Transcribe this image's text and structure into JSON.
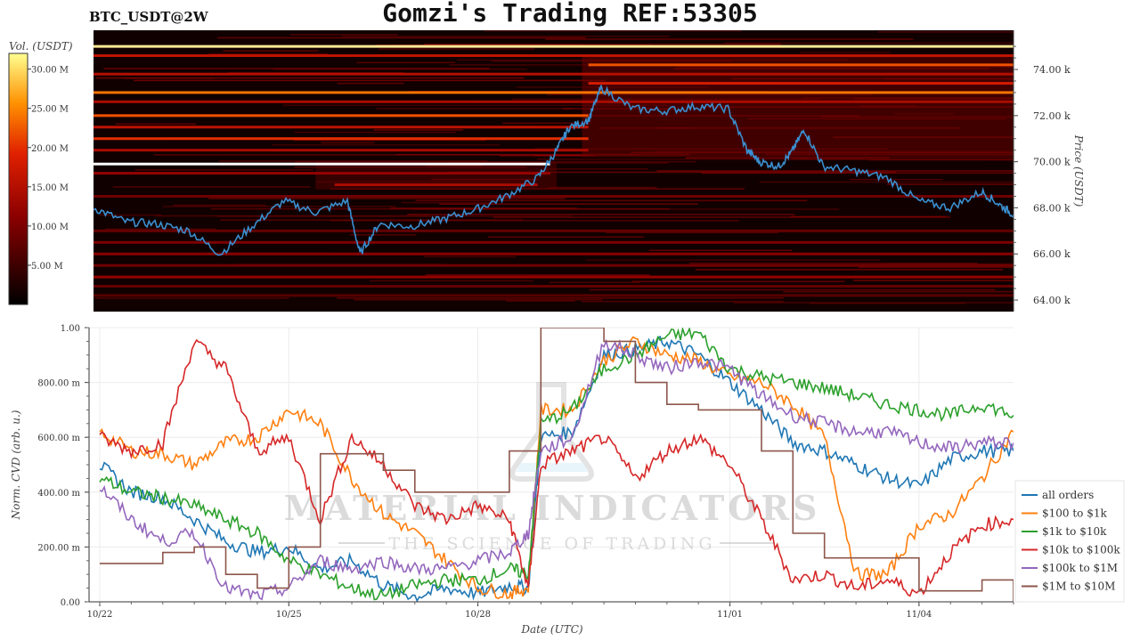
{
  "header": {
    "symbol": "BTC_USDT@2W",
    "title": "Gomzi's Trading REF:53305"
  },
  "watermark": {
    "brand": "MATERIAL INDICATORS",
    "tagline": "THE SCIENCE OF TRADING"
  },
  "colors": {
    "price_line": "#3a8fd0",
    "heatmap_bg": "#110000",
    "all_orders": "#1f77b4",
    "usd_100_1k": "#ff7f0e",
    "usd_1k_10k": "#2ca02c",
    "usd_10k_100k": "#d62728",
    "usd_100k_1m": "#9467bd",
    "usd_1m_10m": "#8c564b"
  },
  "chart_data": [
    {
      "type": "heatmap",
      "title": "BTC_USDT@2W",
      "colorbar": {
        "label": "Vol. (USDT)",
        "ticks": [
          "5.00 M",
          "10.00 M",
          "15.00 M",
          "20.00 M",
          "25.00 M",
          "30.00 M"
        ],
        "tick_values": [
          5,
          10,
          15,
          20,
          25,
          30
        ],
        "range": [
          0,
          32
        ]
      },
      "ylabel": "Price (USDT)",
      "ylim": [
        63500,
        75700
      ],
      "yticks": [
        "64.00 k",
        "66.00 k",
        "68.00 k",
        "70.00 k",
        "72.00 k",
        "74.00 k"
      ],
      "ytick_values": [
        64000,
        66000,
        68000,
        70000,
        72000,
        74000
      ],
      "xlim_days": [
        0,
        14.5
      ],
      "liquidity_bands": [
        {
          "price": 75000,
          "start": 0,
          "end": 14.5,
          "volume": 30
        },
        {
          "price": 74600,
          "start": 0,
          "end": 14.5,
          "volume": 16
        },
        {
          "price": 74200,
          "start": 7.8,
          "end": 14.5,
          "volume": 22
        },
        {
          "price": 73800,
          "start": 0,
          "end": 14.5,
          "volume": 15
        },
        {
          "price": 73400,
          "start": 7.8,
          "end": 14.5,
          "volume": 18
        },
        {
          "price": 73000,
          "start": 0,
          "end": 14.5,
          "volume": 24
        },
        {
          "price": 72600,
          "start": 0,
          "end": 14.5,
          "volume": 14
        },
        {
          "price": 72000,
          "start": 0,
          "end": 7.8,
          "volume": 22
        },
        {
          "price": 71500,
          "start": 0,
          "end": 7.8,
          "volume": 16
        },
        {
          "price": 71000,
          "start": 0,
          "end": 7.8,
          "volume": 20
        },
        {
          "price": 70500,
          "start": 0,
          "end": 7.8,
          "volume": 14
        },
        {
          "price": 69900,
          "start": 0,
          "end": 7.2,
          "volume": 32
        },
        {
          "price": 69500,
          "start": 0,
          "end": 7.2,
          "volume": 12
        },
        {
          "price": 69000,
          "start": 3.8,
          "end": 7.0,
          "volume": 14
        },
        {
          "price": 68500,
          "start": 0,
          "end": 14.5,
          "volume": 9
        },
        {
          "price": 67000,
          "start": 0,
          "end": 14.5,
          "volume": 8
        },
        {
          "price": 66500,
          "start": 0,
          "end": 14.5,
          "volume": 10
        },
        {
          "price": 66000,
          "start": 0,
          "end": 14.5,
          "volume": 11
        },
        {
          "price": 65500,
          "start": 0,
          "end": 14.5,
          "volume": 9
        },
        {
          "price": 65000,
          "start": 0,
          "end": 14.5,
          "volume": 12
        },
        {
          "price": 64600,
          "start": 0,
          "end": 14.5,
          "volume": 8
        },
        {
          "price": 64200,
          "start": 0,
          "end": 14.5,
          "volume": 7
        }
      ],
      "price_series": {
        "days": [
          0,
          0.5,
          1.0,
          1.5,
          2.0,
          2.5,
          3.0,
          3.5,
          4.0,
          4.2,
          4.5,
          5.0,
          5.5,
          6.0,
          6.5,
          7.0,
          7.3,
          7.5,
          7.8,
          8.0,
          8.5,
          9.0,
          9.5,
          10.0,
          10.3,
          10.5,
          10.8,
          11.0,
          11.2,
          11.5,
          12.0,
          12.5,
          13.0,
          13.5,
          14.0,
          14.3,
          14.5
        ],
        "price": [
          68000,
          67400,
          67300,
          67000,
          66000,
          67200,
          68300,
          67800,
          68300,
          66000,
          67300,
          67200,
          67500,
          67900,
          68500,
          69300,
          70500,
          71500,
          71800,
          73200,
          72300,
          72200,
          72400,
          72300,
          70500,
          70000,
          69800,
          70400,
          71400,
          69800,
          69600,
          69300,
          68300,
          68000,
          68700,
          68100,
          67700
        ]
      }
    },
    {
      "type": "line",
      "xlabel": "Date (UTC)",
      "ylabel": "Norm. CVD (arb. u.)",
      "ylim": [
        0,
        1
      ],
      "yticks": [
        "0.00",
        "200.00 m",
        "400.00 m",
        "600.00 m",
        "800.00 m",
        "1.00"
      ],
      "ytick_values": [
        0,
        0.2,
        0.4,
        0.6,
        0.8,
        1.0
      ],
      "xticks": [
        "10/22",
        "10/25",
        "10/28",
        "11/01",
        "11/04"
      ],
      "xtick_days": [
        0,
        3,
        6,
        10,
        13
      ],
      "xlim_days": [
        0,
        14.5
      ],
      "legend_position": "bottom-right",
      "x_days": [
        0,
        0.5,
        1.0,
        1.5,
        2.0,
        2.5,
        3.0,
        3.5,
        4.0,
        4.5,
        5.0,
        5.5,
        6.0,
        6.5,
        6.8,
        7.0,
        7.5,
        8.0,
        8.5,
        9.0,
        9.5,
        10.0,
        10.5,
        11.0,
        11.5,
        12.0,
        12.5,
        13.0,
        13.5,
        14.0,
        14.5
      ],
      "series": [
        {
          "name": "all orders",
          "color": "#1f77b4",
          "values": [
            0.5,
            0.4,
            0.38,
            0.3,
            0.22,
            0.18,
            0.2,
            0.12,
            0.15,
            0.06,
            0.02,
            0.05,
            0.03,
            0.06,
            0.05,
            0.6,
            0.62,
            0.9,
            0.92,
            0.95,
            0.9,
            0.8,
            0.7,
            0.58,
            0.55,
            0.5,
            0.45,
            0.42,
            0.52,
            0.55,
            0.55
          ]
        },
        {
          "name": "$100 to $1k",
          "color": "#ff7f0e",
          "values": [
            0.62,
            0.55,
            0.54,
            0.5,
            0.58,
            0.6,
            0.7,
            0.65,
            0.45,
            0.32,
            0.25,
            0.15,
            0.05,
            0.03,
            0.05,
            0.7,
            0.7,
            0.88,
            0.95,
            0.9,
            0.88,
            0.82,
            0.8,
            0.72,
            0.6,
            0.1,
            0.1,
            0.28,
            0.32,
            0.45,
            0.62
          ]
        },
        {
          "name": "$1k to $10k",
          "color": "#2ca02c",
          "values": [
            0.45,
            0.4,
            0.38,
            0.35,
            0.3,
            0.25,
            0.15,
            0.1,
            0.05,
            0.02,
            0.06,
            0.08,
            0.08,
            0.12,
            0.1,
            0.65,
            0.7,
            0.85,
            0.9,
            0.97,
            0.98,
            0.85,
            0.82,
            0.8,
            0.78,
            0.75,
            0.72,
            0.7,
            0.68,
            0.72,
            0.68
          ]
        },
        {
          "name": "$10k to $100k",
          "color": "#d62728",
          "values": [
            0.6,
            0.55,
            0.58,
            0.95,
            0.85,
            0.55,
            0.6,
            0.3,
            0.6,
            0.5,
            0.35,
            0.3,
            0.35,
            0.3,
            0.05,
            0.5,
            0.55,
            0.6,
            0.45,
            0.55,
            0.6,
            0.5,
            0.3,
            0.08,
            0.1,
            0.05,
            0.08,
            0.03,
            0.18,
            0.28,
            0.3
          ]
        },
        {
          "name": "$100k to $1M",
          "color": "#9467bd",
          "values": [
            0.42,
            0.3,
            0.22,
            0.25,
            0.05,
            0.02,
            0.05,
            0.15,
            0.12,
            0.15,
            0.12,
            0.12,
            0.15,
            0.18,
            0.25,
            0.55,
            0.6,
            0.95,
            0.9,
            0.85,
            0.88,
            0.85,
            0.75,
            0.68,
            0.65,
            0.62,
            0.62,
            0.58,
            0.56,
            0.58,
            0.58
          ]
        },
        {
          "name": "$1M to $10M",
          "color": "#8c564b",
          "values": [
            0.14,
            0.14,
            0.18,
            0.2,
            0.1,
            0.05,
            0.2,
            0.54,
            0.54,
            0.48,
            0.4,
            0.4,
            0.4,
            0.55,
            0.55,
            1.0,
            1.0,
            0.95,
            0.8,
            0.72,
            0.7,
            0.7,
            0.55,
            0.25,
            0.16,
            0.16,
            0.16,
            0.04,
            0.04,
            0.08,
            0.0
          ]
        }
      ]
    }
  ]
}
